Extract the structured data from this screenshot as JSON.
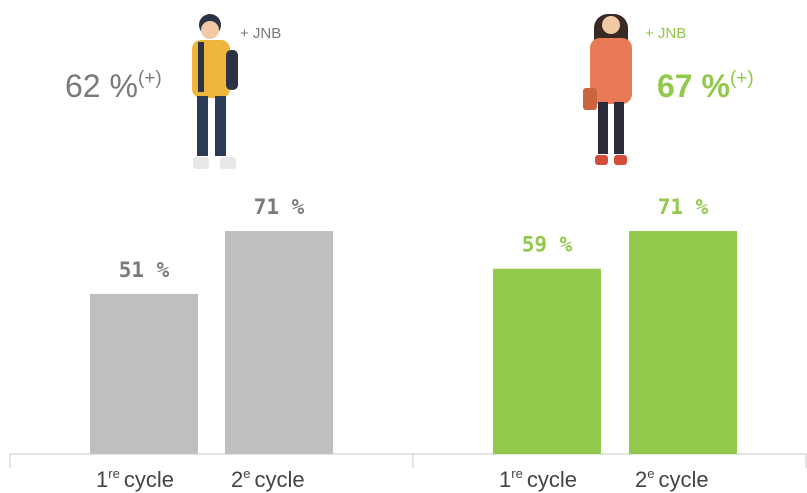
{
  "chart_data": [
    {
      "type": "bar",
      "color": "#bfbfbf",
      "label_color": "#7a7a7a",
      "headline": {
        "text": "62 %",
        "sup": "(+)"
      },
      "annotation": "+ JNB",
      "categories": [
        {
          "number": "1",
          "sup": "re",
          "text": "cycle"
        },
        {
          "number": "2",
          "sup": "e",
          "text": "cycle"
        }
      ],
      "values": [
        51,
        71
      ],
      "value_labels": [
        "51 %",
        "71 %"
      ],
      "ylim": [
        0,
        100
      ]
    },
    {
      "type": "bar",
      "color": "#92c84c",
      "label_color": "#92c84c",
      "headline": {
        "text": "67 %",
        "sup": "(+)"
      },
      "annotation": "+ JNB",
      "categories": [
        {
          "number": "1",
          "sup": "re",
          "text": "cycle"
        },
        {
          "number": "2",
          "sup": "e",
          "text": "cycle"
        }
      ],
      "values": [
        59,
        71
      ],
      "value_labels": [
        "59 %",
        "71 %"
      ],
      "ylim": [
        0,
        100
      ]
    }
  ]
}
